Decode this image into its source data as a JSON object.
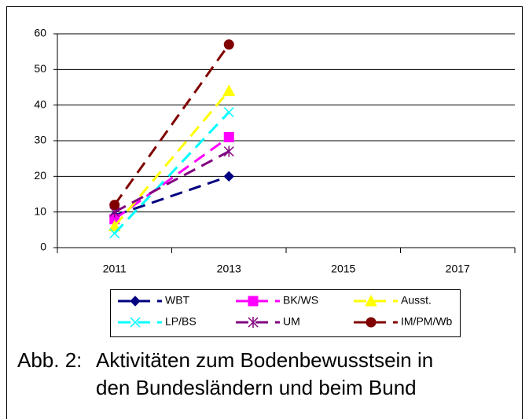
{
  "chart_data": {
    "type": "line",
    "categories": [
      "2011",
      "2013",
      "2015",
      "2017"
    ],
    "ylim": [
      0,
      60
    ],
    "yticks": [
      0,
      10,
      20,
      30,
      40,
      50,
      60
    ],
    "grid": true,
    "legend": "bottom",
    "series": [
      {
        "name": "WBT",
        "color": "#000080",
        "marker": "diamond",
        "values": [
          9,
          20,
          null,
          null
        ]
      },
      {
        "name": "BK/WS",
        "color": "#ff00ff",
        "marker": "square",
        "values": [
          8,
          31,
          null,
          null
        ]
      },
      {
        "name": "Ausst.",
        "color": "#ffff00",
        "marker": "triangle",
        "values": [
          6,
          44,
          null,
          null
        ]
      },
      {
        "name": "LP/BS",
        "color": "#00ffff",
        "marker": "x",
        "values": [
          4,
          38,
          null,
          null
        ]
      },
      {
        "name": "UM",
        "color": "#800080",
        "marker": "star",
        "values": [
          10,
          27,
          null,
          null
        ]
      },
      {
        "name": "IM/PM/Wb",
        "color": "#800000",
        "marker": "circle",
        "values": [
          12,
          57,
          null,
          null
        ]
      }
    ],
    "caption": {
      "label": "Abb. 2:",
      "lines": [
        "Aktivitäten zum Bodenbewusstsein in",
        "den Bundesländern und beim Bund"
      ]
    }
  }
}
